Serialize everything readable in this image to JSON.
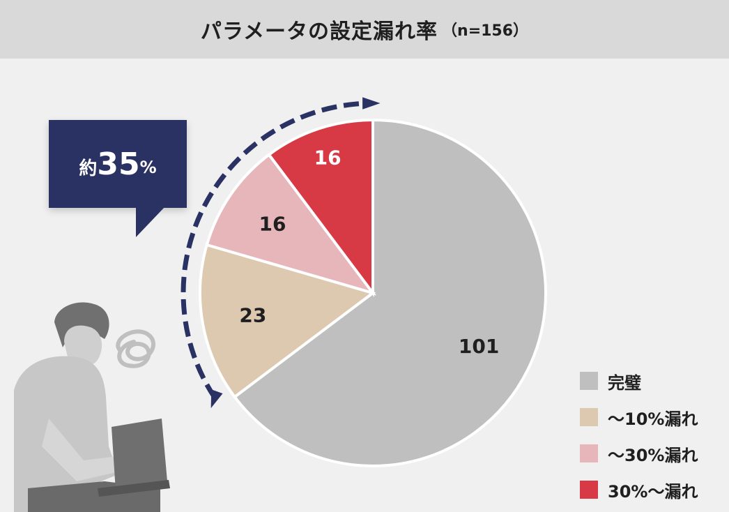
{
  "header": {
    "title": "パラメータの設定漏れ率",
    "n_label": "（n=156）"
  },
  "callout": {
    "prefix": "約",
    "value": "35",
    "unit": "%"
  },
  "chart_data": {
    "type": "pie",
    "title": "パラメータの設定漏れ率",
    "n": 156,
    "start": "top",
    "direction": "clockwise",
    "categories": [
      "完璧",
      "～10%漏れ",
      "～30%漏れ",
      "30%～漏れ"
    ],
    "values": [
      101,
      23,
      16,
      16
    ],
    "data_labels": [
      "101",
      "23",
      "16",
      "16"
    ],
    "colors": [
      "#bfbfbf",
      "#ddc9b0",
      "#e6b6ba",
      "#d83a45"
    ],
    "label_colors": [
      "#1f1f1f",
      "#1f1f1f",
      "#1f1f1f",
      "#ffffff"
    ],
    "legend": {
      "placement": "bottom-right",
      "items": [
        {
          "label": "完璧",
          "color": "#bfbfbf"
        },
        {
          "label": "～10%漏れ",
          "color": "#ddc9b0"
        },
        {
          "label": "～30%漏れ",
          "color": "#e6b6ba"
        },
        {
          "label": "30%～漏れ",
          "color": "#d83a45"
        }
      ]
    },
    "annotation_arrow_color": "#2a3163"
  }
}
